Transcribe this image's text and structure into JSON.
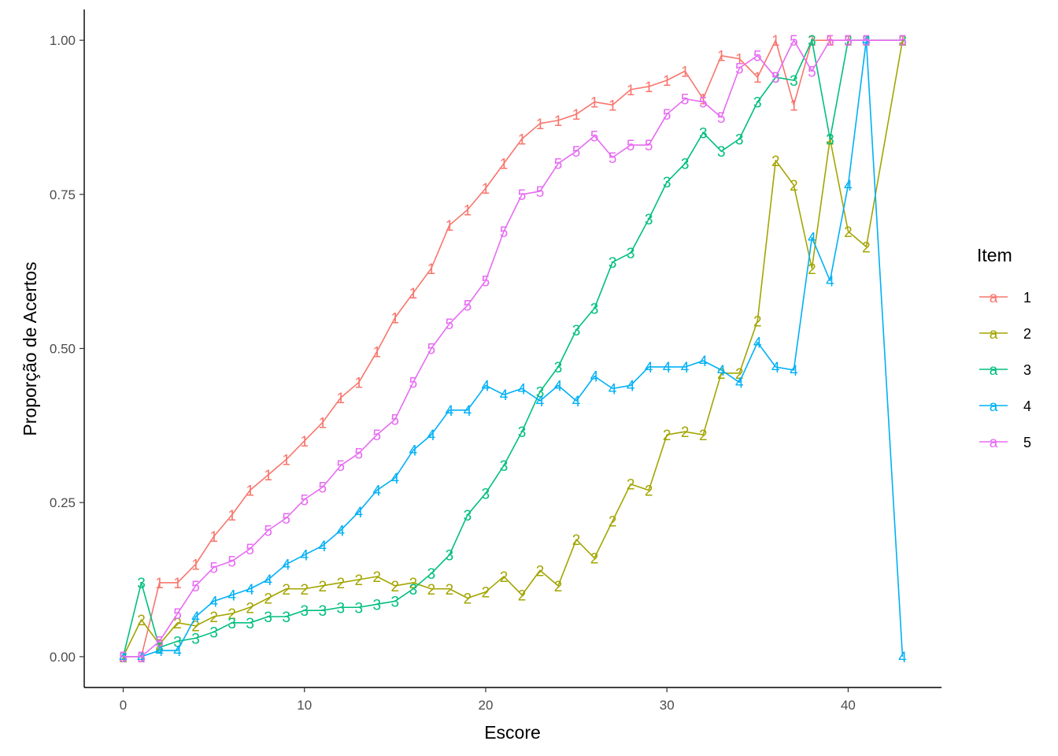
{
  "chart_data": {
    "type": "line",
    "xlabel": "Escore",
    "ylabel": "Proporção de Acertos",
    "xlim": [
      -2.15,
      45.15
    ],
    "ylim": [
      -0.05,
      1.05
    ],
    "x_ticks": [
      0,
      10,
      20,
      30,
      40
    ],
    "x_tick_labels": [
      "0",
      "10",
      "20",
      "30",
      "40"
    ],
    "y_ticks": [
      0,
      0.25,
      0.5,
      0.75,
      1.0
    ],
    "y_tick_labels": [
      "0.00",
      "0.25",
      "0.50",
      "0.75",
      "1.00"
    ],
    "grid": false,
    "legend": {
      "title": "Item",
      "position": "right",
      "key_glyph": "a"
    },
    "x": [
      0,
      1,
      2,
      3,
      4,
      5,
      6,
      7,
      8,
      9,
      10,
      11,
      12,
      13,
      14,
      15,
      16,
      17,
      18,
      19,
      20,
      21,
      22,
      23,
      24,
      25,
      26,
      27,
      28,
      29,
      30,
      31,
      32,
      33,
      34,
      35,
      36,
      37,
      38,
      39,
      40,
      41,
      43
    ],
    "series": [
      {
        "name": "1",
        "color": "#F8766D",
        "values": [
          0,
          0,
          0.12,
          0.12,
          0.15,
          0.195,
          0.23,
          0.27,
          0.295,
          0.32,
          0.35,
          0.38,
          0.42,
          0.445,
          0.495,
          0.55,
          0.59,
          0.63,
          0.7,
          0.725,
          0.76,
          0.8,
          0.84,
          0.865,
          0.87,
          0.88,
          0.9,
          0.895,
          0.92,
          0.925,
          0.935,
          0.95,
          0.905,
          0.975,
          0.97,
          0.94,
          1.0,
          0.895,
          1.0,
          1.0,
          1.0,
          1.0,
          1.0
        ]
      },
      {
        "name": "2",
        "color": "#A3A500",
        "values": [
          0,
          0.06,
          0.02,
          0.055,
          0.05,
          0.065,
          0.07,
          0.08,
          0.095,
          0.11,
          0.11,
          0.115,
          0.12,
          0.125,
          0.13,
          0.115,
          0.12,
          0.11,
          0.11,
          0.095,
          0.105,
          0.13,
          0.1,
          0.14,
          0.115,
          0.19,
          0.16,
          0.22,
          0.28,
          0.27,
          0.36,
          0.365,
          0.36,
          0.46,
          0.46,
          0.545,
          0.805,
          0.765,
          0.63,
          0.84,
          0.69,
          0.665,
          1.0
        ]
      },
      {
        "name": "3",
        "color": "#00BF7D",
        "values": [
          0,
          0.12,
          0.015,
          0.025,
          0.03,
          0.04,
          0.055,
          0.055,
          0.065,
          0.065,
          0.075,
          0.075,
          0.08,
          0.08,
          0.085,
          0.09,
          0.11,
          0.135,
          0.165,
          0.23,
          0.265,
          0.31,
          0.365,
          0.43,
          0.47,
          0.53,
          0.565,
          0.64,
          0.655,
          0.71,
          0.77,
          0.8,
          0.85,
          0.82,
          0.84,
          0.9,
          0.94,
          0.935,
          1.0,
          0.84,
          1.0,
          1.0,
          1.0
        ]
      },
      {
        "name": "4",
        "color": "#00B0F6",
        "values": [
          0,
          0,
          0.01,
          0.01,
          0.065,
          0.09,
          0.1,
          0.11,
          0.125,
          0.15,
          0.165,
          0.18,
          0.205,
          0.235,
          0.27,
          0.29,
          0.335,
          0.36,
          0.4,
          0.4,
          0.44,
          0.425,
          0.435,
          0.415,
          0.44,
          0.415,
          0.455,
          0.435,
          0.44,
          0.47,
          0.47,
          0.47,
          0.48,
          0.465,
          0.445,
          0.51,
          0.47,
          0.465,
          0.68,
          0.61,
          0.765,
          1.0,
          0
        ]
      },
      {
        "name": "5",
        "color": "#E76BF3",
        "values": [
          0,
          0,
          0.025,
          0.07,
          0.115,
          0.145,
          0.155,
          0.175,
          0.205,
          0.225,
          0.255,
          0.275,
          0.31,
          0.33,
          0.36,
          0.385,
          0.445,
          0.5,
          0.54,
          0.57,
          0.61,
          0.69,
          0.75,
          0.755,
          0.8,
          0.82,
          0.845,
          0.81,
          0.83,
          0.83,
          0.88,
          0.905,
          0.9,
          0.875,
          0.955,
          0.975,
          0.94,
          1.0,
          0.95,
          1.0,
          1.0,
          1.0,
          1.0
        ]
      }
    ]
  }
}
